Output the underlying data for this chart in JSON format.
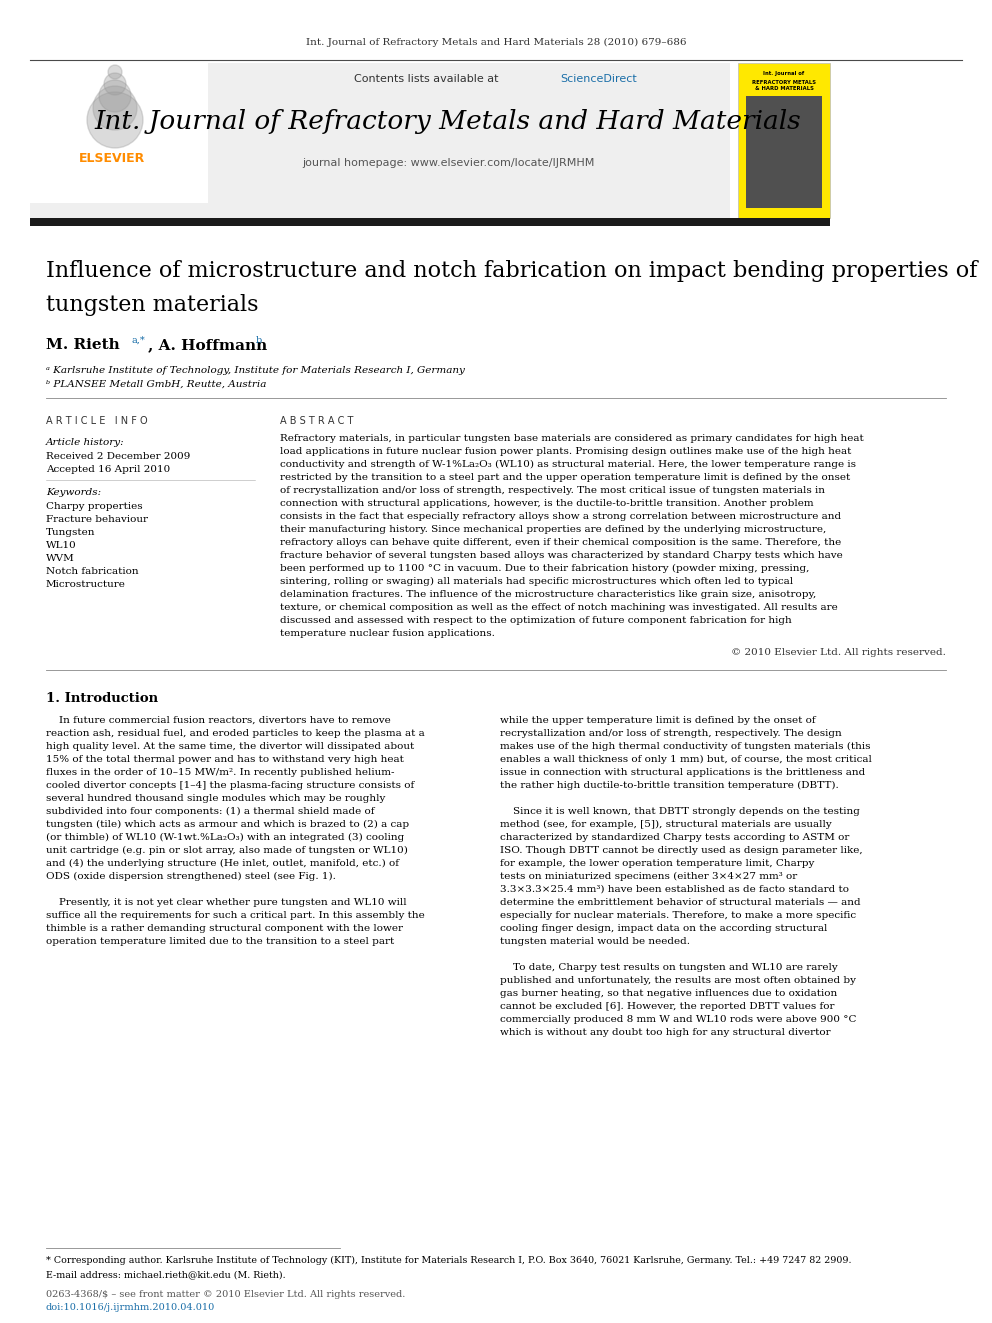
{
  "page_header": "Int. Journal of Refractory Metals and Hard Materials 28 (2010) 679–686",
  "journal_name": "Int. Journal of Refractory Metals and Hard Materials",
  "journal_homepage": "journal homepage: www.elsevier.com/locate/IJRMHM",
  "contents_line": "Contents lists available at ScienceDirect",
  "elsevier_color": "#FF8C00",
  "sciencedirect_color": "#1a6ea8",
  "article_title_line1": "Influence of microstructure and notch fabrication on impact bending properties of",
  "article_title_line2": "tungsten materials",
  "affil_a": "ᵃ Karlsruhe Institute of Technology, Institute for Materials Research I, Germany",
  "affil_b": "ᵇ PLANSEE Metall GmbH, Reutte, Austria",
  "article_info_header": "A R T I C L E   I N F O",
  "abstract_header": "A B S T R A C T",
  "article_history": "Article history:",
  "received_date": "Received 2 December 2009",
  "accepted_date": "Accepted 16 April 2010",
  "keywords_header": "Keywords:",
  "keywords": [
    "Charpy properties",
    "Fracture behaviour",
    "Tungsten",
    "WL10",
    "WVM",
    "Notch fabrication",
    "Microstructure"
  ],
  "copyright": "© 2010 Elsevier Ltd. All rights reserved.",
  "section1_title": "1. Introduction",
  "footnote_star": "* Corresponding author. Karlsruhe Institute of Technology (KIT), Institute for Materials Research I, P.O. Box 3640, 76021 Karlsruhe, Germany. Tel.: +49 7247 82 2909.",
  "footnote_email": "E-mail address: michael.rieth@kit.edu (M. Rieth).",
  "footer_issn": "0263-4368/$ – see front matter © 2010 Elsevier Ltd. All rights reserved.",
  "footer_doi": "doi:10.1016/j.ijrmhm.2010.04.010",
  "header_line_color": "#4a4a4a",
  "header_bg_color": "#efefef",
  "black_bar_color": "#1a1a1a",
  "yellow_cover_color": "#FFE800",
  "abstract_lines": [
    "Refractory materials, in particular tungsten base materials are considered as primary candidates for high heat",
    "load applications in future nuclear fusion power plants. Promising design outlines make use of the high heat",
    "conductivity and strength of W-1%La₂O₃ (WL10) as structural material. Here, the lower temperature range is",
    "restricted by the transition to a steel part and the upper operation temperature limit is defined by the onset",
    "of recrystallization and/or loss of strength, respectively. The most critical issue of tungsten materials in",
    "connection with structural applications, however, is the ductile-to-brittle transition. Another problem",
    "consists in the fact that especially refractory alloys show a strong correlation between microstructure and",
    "their manufacturing history. Since mechanical properties are defined by the underlying microstructure,",
    "refractory alloys can behave quite different, even if their chemical composition is the same. Therefore, the",
    "fracture behavior of several tungsten based alloys was characterized by standard Charpy tests which have",
    "been performed up to 1100 °C in vacuum. Due to their fabrication history (powder mixing, pressing,",
    "sintering, rolling or swaging) all materials had specific microstructures which often led to typical",
    "delamination fractures. The influence of the microstructure characteristics like grain size, anisotropy,",
    "texture, or chemical composition as well as the effect of notch machining was investigated. All results are",
    "discussed and assessed with respect to the optimization of future component fabrication for high",
    "temperature nuclear fusion applications."
  ],
  "col1_lines": [
    "    In future commercial fusion reactors, divertors have to remove",
    "reaction ash, residual fuel, and eroded particles to keep the plasma at a",
    "high quality level. At the same time, the divertor will dissipated about",
    "15% of the total thermal power and has to withstand very high heat",
    "fluxes in the order of 10–15 MW/m². In recently published helium-",
    "cooled divertor concepts [1–4] the plasma-facing structure consists of",
    "several hundred thousand single modules which may be roughly",
    "subdivided into four components: (1) a thermal shield made of",
    "tungsten (tile) which acts as armour and which is brazed to (2) a cap",
    "(or thimble) of WL10 (W-1wt.%La₂O₃) with an integrated (3) cooling",
    "unit cartridge (e.g. pin or slot array, also made of tungsten or WL10)",
    "and (4) the underlying structure (He inlet, outlet, manifold, etc.) of",
    "ODS (oxide dispersion strengthened) steel (see Fig. 1).",
    "",
    "    Presently, it is not yet clear whether pure tungsten and WL10 will",
    "suffice all the requirements for such a critical part. In this assembly the",
    "thimble is a rather demanding structural component with the lower",
    "operation temperature limited due to the transition to a steel part"
  ],
  "col2_lines": [
    "while the upper temperature limit is defined by the onset of",
    "recrystallization and/or loss of strength, respectively. The design",
    "makes use of the high thermal conductivity of tungsten materials (this",
    "enables a wall thickness of only 1 mm) but, of course, the most critical",
    "issue in connection with structural applications is the brittleness and",
    "the rather high ductile-to-brittle transition temperature (DBTT).",
    "",
    "    Since it is well known, that DBTT strongly depends on the testing",
    "method (see, for example, [5]), structural materials are usually",
    "characterized by standardized Charpy tests according to ASTM or",
    "ISO. Though DBTT cannot be directly used as design parameter like,",
    "for example, the lower operation temperature limit, Charpy",
    "tests on miniaturized specimens (either 3×4×27 mm³ or",
    "3.3×3.3×25.4 mm³) have been established as de facto standard to",
    "determine the embrittlement behavior of structural materials — and",
    "especially for nuclear materials. Therefore, to make a more specific",
    "cooling finger design, impact data on the according structural",
    "tungsten material would be needed.",
    "",
    "    To date, Charpy test results on tungsten and WL10 are rarely",
    "published and unfortunately, the results are most often obtained by",
    "gas burner heating, so that negative influences due to oxidation",
    "cannot be excluded [6]. However, the reported DBTT values for",
    "commercially produced 8 mm W and WL10 rods were above 900 °C",
    "which is without any doubt too high for any structural divertor"
  ]
}
